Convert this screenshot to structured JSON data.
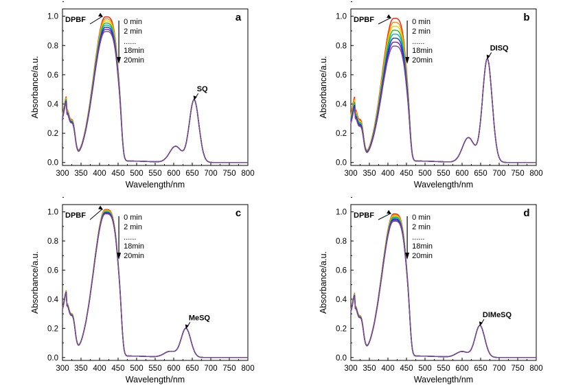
{
  "colors": {
    "series": [
      "#ff1a00",
      "#ff8c00",
      "#e6d800",
      "#22bb22",
      "#00b0d8",
      "#1a2fd0",
      "#6a1ab8",
      "#7b4a8f"
    ],
    "axis": "#000000"
  },
  "chart_data": [
    {
      "panel": "a",
      "type": "line",
      "xlabel": "Wavelength/nm",
      "ylabel": "Absorbance/a.u.",
      "xlim": [
        300,
        800
      ],
      "ylim": [
        -0.02,
        1.05
      ],
      "xticks": [
        300,
        350,
        400,
        450,
        500,
        550,
        600,
        650,
        700,
        750,
        800
      ],
      "yticks": [
        "0.0",
        "0.2",
        "0.4",
        "0.6",
        "0.8",
        "1.0"
      ],
      "grid": false,
      "annotations": {
        "dpbf": "DPBF",
        "compound": "SQ"
      },
      "legend": [
        "0 min",
        "2 min",
        "......",
        "18min",
        "20min"
      ],
      "dpbf_peak": {
        "wavelength": 415,
        "start": 0.99,
        "end": 0.89
      },
      "shoulder": {
        "wavelength": 320,
        "start": 0.39,
        "end": 0.36
      },
      "compound_peak": {
        "wavelength": 655,
        "value": 0.43
      },
      "compound_shoulder": {
        "wavelength": 605,
        "value": 0.11
      },
      "series_count": 8
    },
    {
      "panel": "b",
      "type": "line",
      "xlabel": "Wavelength/nm",
      "ylabel": "Absorbance/a.u.",
      "xlim": [
        300,
        800
      ],
      "ylim": [
        -0.02,
        1.05
      ],
      "xticks": [
        300,
        350,
        400,
        450,
        500,
        550,
        600,
        650,
        700,
        750,
        800
      ],
      "yticks": [
        "0.0",
        "0.2",
        "0.4",
        "0.6",
        "0.8",
        "1.0"
      ],
      "grid": false,
      "annotations": {
        "dpbf": "DPBF",
        "compound": "DISQ"
      },
      "legend": [
        "0 min",
        "2 min",
        "......",
        "18min",
        "20min"
      ],
      "dpbf_peak": {
        "wavelength": 415,
        "start": 0.98,
        "end": 0.79
      },
      "shoulder": {
        "wavelength": 320,
        "start": 0.39,
        "end": 0.33
      },
      "compound_peak": {
        "wavelength": 668,
        "value": 0.71
      },
      "compound_shoulder": {
        "wavelength": 617,
        "value": 0.17
      },
      "series_count": 8
    },
    {
      "panel": "c",
      "type": "line",
      "xlabel": "Wavelength/nm",
      "ylabel": "Absorbance/a.u.",
      "xlim": [
        300,
        800
      ],
      "ylim": [
        -0.02,
        1.05
      ],
      "xticks": [
        300,
        350,
        400,
        450,
        500,
        550,
        600,
        650,
        700,
        750,
        800
      ],
      "yticks": [
        "0.0",
        "0.2",
        "0.4",
        "0.6",
        "0.8",
        "1.0"
      ],
      "grid": false,
      "annotations": {
        "dpbf": "DPBF",
        "compound": "MeSQ"
      },
      "legend": [
        "0 min",
        "2 min",
        "......",
        "18min",
        "20min"
      ],
      "dpbf_peak": {
        "wavelength": 415,
        "start": 1.01,
        "end": 0.98
      },
      "shoulder": {
        "wavelength": 320,
        "start": 0.4,
        "end": 0.38
      },
      "compound_peak": {
        "wavelength": 633,
        "value": 0.2
      },
      "compound_shoulder": {
        "wavelength": 590,
        "value": 0.04
      },
      "series_count": 8
    },
    {
      "panel": "d",
      "type": "line",
      "xlabel": "Wavelength/nm",
      "ylabel": "Absorbance/a.u.",
      "xlim": [
        300,
        800
      ],
      "ylim": [
        -0.02,
        1.05
      ],
      "xticks": [
        300,
        350,
        400,
        450,
        500,
        550,
        600,
        650,
        700,
        750,
        800
      ],
      "yticks": [
        "0.0",
        "0.2",
        "0.4",
        "0.6",
        "0.8",
        "1.0"
      ],
      "grid": false,
      "annotations": {
        "dpbf": "DPBF",
        "compound": "DIMeSQ"
      },
      "legend": [
        "0 min",
        "2 min",
        "......",
        "18min",
        "20min"
      ],
      "dpbf_peak": {
        "wavelength": 415,
        "start": 0.98,
        "end": 0.93
      },
      "shoulder": {
        "wavelength": 320,
        "start": 0.38,
        "end": 0.36
      },
      "compound_peak": {
        "wavelength": 648,
        "value": 0.22
      },
      "compound_shoulder": {
        "wavelength": 600,
        "value": 0.04
      },
      "series_count": 8
    }
  ]
}
